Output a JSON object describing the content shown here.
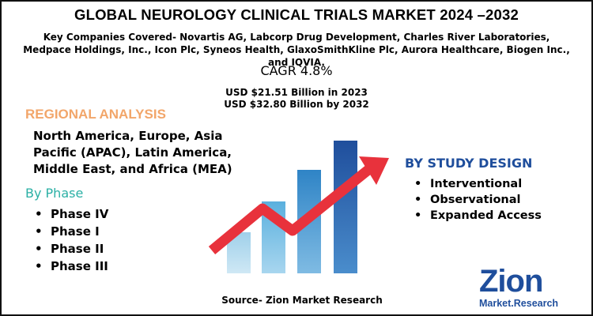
{
  "header": {
    "title": "GLOBAL NEUROLOGY CLINICAL TRIALS MARKET 2024 –2032",
    "subtitle": "Key Companies Covered- Novartis AG, Labcorp Drug Development, Charles River Laboratories, Medpace Holdings, Inc., Icon Plc, Syneos Health, GlaxoSmithKline Plc, Aurora Healthcare, Biogen Inc., and IQVIA."
  },
  "market": {
    "cagr": "CAGR 4.8%",
    "value_2023": "USD $21.51 Billion in 2023",
    "value_2032": "USD $32.80 Billion by 2032"
  },
  "regional_analysis": {
    "title": "REGIONAL ANALYSIS",
    "text": "North America, Europe, Asia Pacific (APAC), Latin America, Middle East, and Africa (MEA)"
  },
  "by_phase": {
    "title": "By Phase",
    "items": [
      "Phase IV",
      "Phase I",
      "Phase II",
      "Phase III"
    ]
  },
  "by_study_design": {
    "title": "BY STUDY DESIGN",
    "items": [
      "Interventional",
      "Observational",
      "Expanded Access"
    ]
  },
  "source": "Source- Zion Market Research",
  "logo": {
    "name": "Zion",
    "tagline": "Market.Research"
  }
}
